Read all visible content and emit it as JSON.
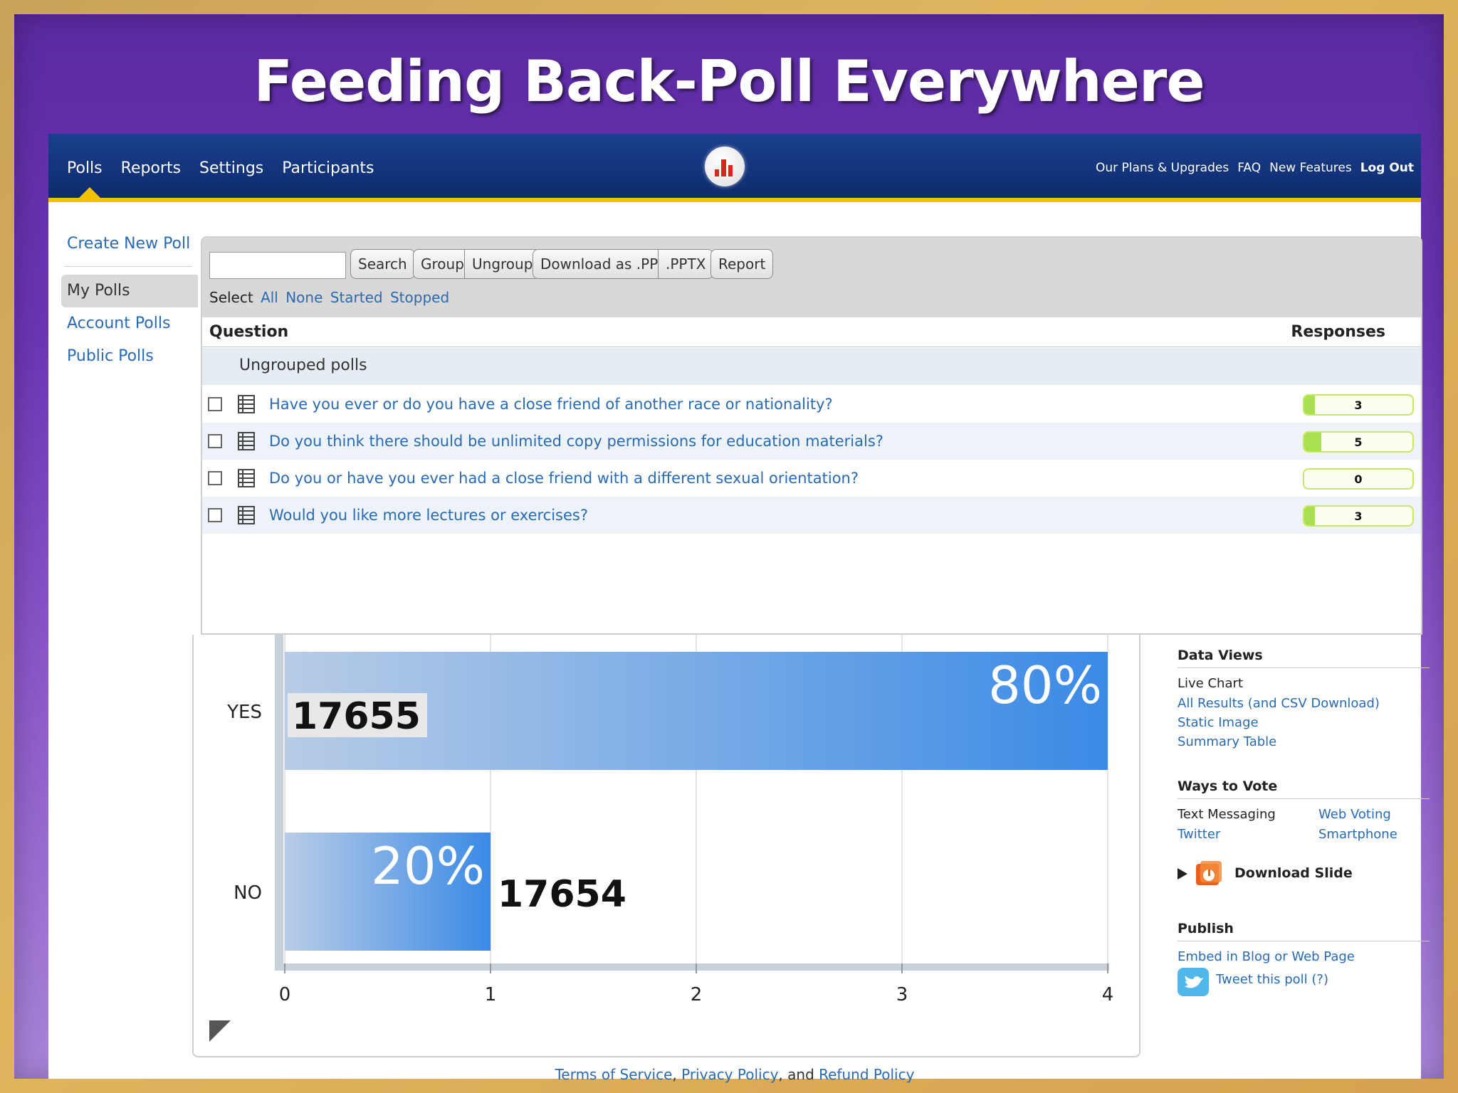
{
  "slide": {
    "title": "Feeding Back-Poll Everywhere"
  },
  "nav": {
    "items": [
      "Polls",
      "Reports",
      "Settings",
      "Participants"
    ],
    "right": [
      "Our Plans & Upgrades",
      "FAQ",
      "New Features",
      "Log Out"
    ]
  },
  "sidebar": {
    "create": "Create New Poll",
    "my_polls": "My Polls",
    "account_polls": "Account Polls",
    "public_polls": "Public Polls"
  },
  "toolbar": {
    "search_placeholder": "",
    "search": "Search",
    "group": "Group",
    "ungroup": "Ungroup",
    "download_ppt": "Download as .PPT",
    "pptx": ".PPTX",
    "report": "Report",
    "select_label": "Select",
    "select_all": "All",
    "select_none": "None",
    "select_started": "Started",
    "select_stopped": "Stopped"
  },
  "table": {
    "col_question": "Question",
    "col_responses": "Responses",
    "group_label": "Ungrouped polls",
    "rows": [
      {
        "question": "Have you ever or do you have a close friend of another race or nationality?",
        "responses": "3",
        "fill": 0.1
      },
      {
        "question": "Do you think there should be unlimited copy permissions for education materials?",
        "responses": "5",
        "fill": 0.16
      },
      {
        "question": "Do you or have you ever had a close friend with a different sexual orientation?",
        "responses": "0",
        "fill": 0
      },
      {
        "question": "Would you like more lectures or exercises?",
        "responses": "3",
        "fill": 0.1
      }
    ]
  },
  "chart_data": {
    "type": "bar",
    "orientation": "horizontal",
    "categories": [
      "YES",
      "NO"
    ],
    "values": [
      4,
      1
    ],
    "percent_labels": [
      "80%",
      "20%"
    ],
    "count_labels": [
      "17655",
      "17654"
    ],
    "xlim": [
      0,
      4
    ],
    "xticks": [
      "0",
      "1",
      "2",
      "3",
      "4"
    ],
    "grid": true,
    "bar_color": "#3a8ae6"
  },
  "right_panel": {
    "data_views": "Data Views",
    "live_chart": "Live Chart",
    "all_results": "All Results (and CSV Download)",
    "static_image": "Static Image",
    "summary_table": "Summary Table",
    "ways_to_vote": "Ways to Vote",
    "text_messaging": "Text Messaging",
    "web_voting": "Web Voting",
    "twitter": "Twitter",
    "smartphone": "Smartphone",
    "download_slide": "Download Slide",
    "publish": "Publish",
    "embed": "Embed in Blog or Web Page",
    "tweet": "Tweet this poll (?)"
  },
  "footer": {
    "terms": "Terms of Service",
    "comma1": ", ",
    "privacy": "Privacy Policy",
    "and": ", and ",
    "refund": "Refund Policy"
  }
}
